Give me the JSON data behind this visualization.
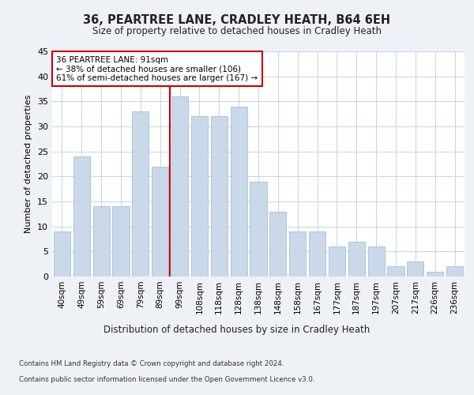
{
  "title": "36, PEARTREE LANE, CRADLEY HEATH, B64 6EH",
  "subtitle": "Size of property relative to detached houses in Cradley Heath",
  "xlabel": "Distribution of detached houses by size in Cradley Heath",
  "ylabel": "Number of detached properties",
  "x_labels": [
    "40sqm",
    "49sqm",
    "59sqm",
    "69sqm",
    "79sqm",
    "89sqm",
    "99sqm",
    "108sqm",
    "118sqm",
    "128sqm",
    "138sqm",
    "148sqm",
    "158sqm",
    "167sqm",
    "177sqm",
    "187sqm",
    "197sqm",
    "207sqm",
    "217sqm",
    "226sqm",
    "236sqm"
  ],
  "bar_heights": [
    9,
    24,
    14,
    14,
    33,
    22,
    36,
    32,
    32,
    34,
    19,
    13,
    9,
    9,
    6,
    7,
    6,
    2,
    3,
    1,
    2
  ],
  "bar_color": "#c9d9ea",
  "bar_edge_color": "#a8bfd0",
  "highlight_line_color": "#cc0000",
  "highlight_bar_index": 6,
  "annotation_text": "36 PEARTREE LANE: 91sqm\n← 38% of detached houses are smaller (106)\n61% of semi-detached houses are larger (167) →",
  "annotation_box_color": "#ffffff",
  "annotation_box_edge_color": "#cc0000",
  "ylim": [
    0,
    45
  ],
  "yticks": [
    0,
    5,
    10,
    15,
    20,
    25,
    30,
    35,
    40,
    45
  ],
  "footer_line1": "Contains HM Land Registry data © Crown copyright and database right 2024.",
  "footer_line2": "Contains public sector information licensed under the Open Government Licence v3.0.",
  "background_color": "#eef2f7",
  "plot_bg_color": "#ffffff",
  "grid_color": "#c8d4e0"
}
